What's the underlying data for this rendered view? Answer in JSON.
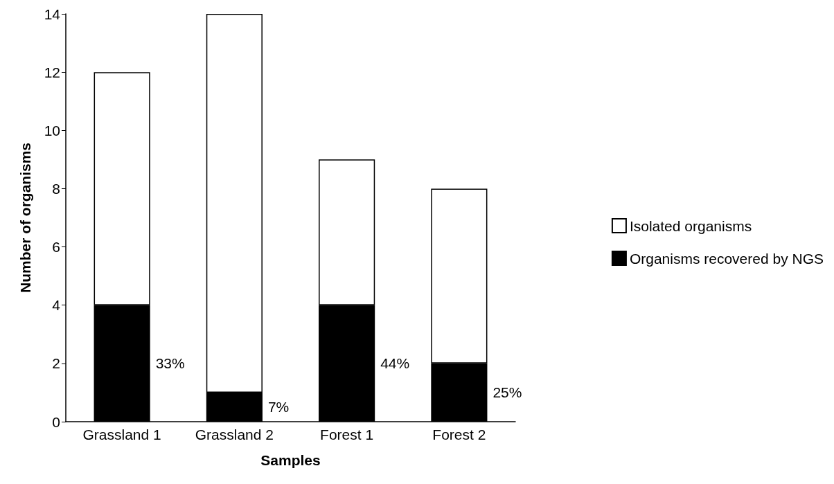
{
  "chart_data": {
    "type": "bar",
    "xlabel": "Samples",
    "ylabel": "Number of organisms",
    "categories": [
      "Grassland 1",
      "Grassland 2",
      "Forest 1",
      "Forest 2"
    ],
    "stacked": true,
    "series": [
      {
        "name": "Organisms recovered by NGS",
        "color": "#000000",
        "values": [
          4,
          1,
          4,
          2
        ]
      },
      {
        "name": "Isolated organisms",
        "color": "#ffffff",
        "values": [
          8,
          13,
          5,
          6
        ]
      }
    ],
    "annotations": [
      "33%",
      "7%",
      "44%",
      "25%"
    ],
    "ylim": [
      0,
      14
    ],
    "yticks": [
      0,
      2,
      4,
      6,
      8,
      10,
      12,
      14
    ],
    "grid": false,
    "legend": "right"
  }
}
